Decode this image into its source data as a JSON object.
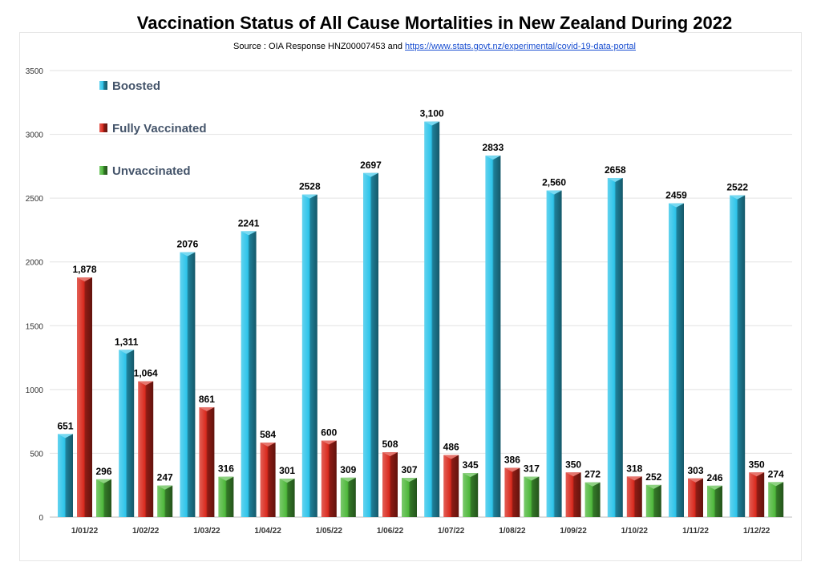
{
  "title": "Vaccination Status of All Cause Mortalities in New Zealand During 2022",
  "subtitle": {
    "prefix": "Source : OIA Response HNZ00007453 and ",
    "link": "https://www.stats.govt.nz/experimental/covid-19-data-portal"
  },
  "colors": {
    "boosted": "#2ec4ea",
    "fully_vaccinated": "#d92a1e",
    "unvaccinated": "#4fb83c",
    "grid": "#e2e2e2"
  },
  "chart_data": {
    "type": "bar",
    "categories": [
      "1/01/22",
      "1/02/22",
      "1/03/22",
      "1/04/22",
      "1/05/22",
      "1/06/22",
      "1/07/22",
      "1/08/22",
      "1/09/22",
      "1/10/22",
      "1/11/22",
      "1/12/22"
    ],
    "series": [
      {
        "name": "Boosted",
        "values": [
          651,
          1311,
          2076,
          2241,
          2528,
          2697,
          3100,
          2833,
          2560,
          2658,
          2459,
          2522
        ],
        "labels": [
          "651",
          "1,311",
          "2076",
          "2241",
          "2528",
          "2697",
          "3,100",
          "2833",
          "2,560",
          "2658",
          "2459",
          "2522"
        ]
      },
      {
        "name": "Fully Vaccinated",
        "values": [
          1878,
          1064,
          861,
          584,
          600,
          508,
          486,
          386,
          350,
          318,
          303,
          350
        ],
        "labels": [
          "1,878",
          "1,064",
          "861",
          "584",
          "600",
          "508",
          "486",
          "386",
          "350",
          "318",
          "303",
          "350"
        ]
      },
      {
        "name": "Unvaccinated",
        "values": [
          296,
          247,
          316,
          301,
          309,
          307,
          345,
          317,
          272,
          252,
          246,
          274
        ],
        "labels": [
          "296",
          "247",
          "316",
          "301",
          "309",
          "307",
          "345",
          "317",
          "272",
          "252",
          "246",
          "274"
        ]
      }
    ],
    "ylim": [
      0,
      3500
    ],
    "yticks": [
      "0",
      "500",
      "1000",
      "1500",
      "2000",
      "2500",
      "3000",
      "3500"
    ],
    "grid": true,
    "legend": "top-left"
  }
}
